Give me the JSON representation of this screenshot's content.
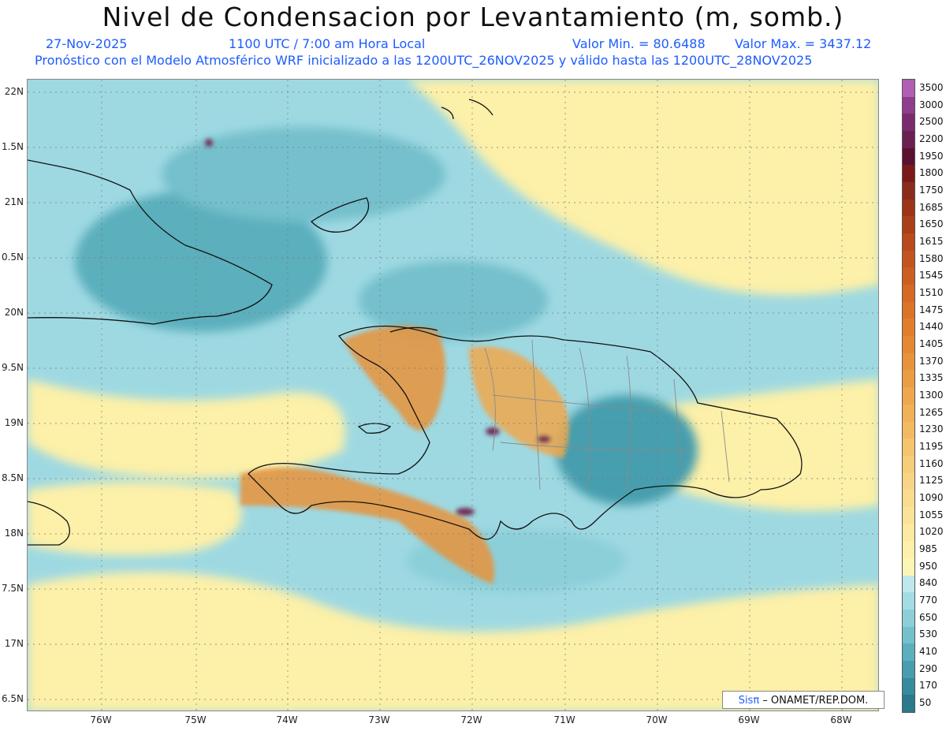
{
  "header": {
    "title": "Nivel de Condensacion por Levantamiento (m, somb.)",
    "date": "27-Nov-2025",
    "time": "1100 UTC / 7:00 am Hora Local",
    "min_label": "Valor Min. = 80.6488",
    "max_label": "Valor Max. = 3437.12",
    "forecast_note": "Pronóstico con el Modelo Atmosférico WRF inicializado a las 1200UTC_26NOV2025 y válido hasta las  1200UTC_28NOV2025"
  },
  "map": {
    "lat_labels": [
      "22N",
      "1.5N",
      "21N",
      "0.5N",
      "20N",
      "9.5N",
      "19N",
      "8.5N",
      "18N",
      "7.5N",
      "17N",
      "6.5N"
    ],
    "lon_labels": [
      "76W",
      "75W",
      "74W",
      "73W",
      "72W",
      "71W",
      "70W",
      "69W",
      "68W"
    ],
    "colors": {
      "low": "#2f7d8e",
      "mid": "#9ed9e2",
      "pale": "#fdf0a8",
      "high": "#d98b3a",
      "peak": "#6e2a52"
    }
  },
  "colorbar": {
    "levels": [
      "3500",
      "3000",
      "2500",
      "2200",
      "1950",
      "1800",
      "1750",
      "1685",
      "1650",
      "1615",
      "1580",
      "1545",
      "1510",
      "1475",
      "1440",
      "1405",
      "1370",
      "1335",
      "1300",
      "1265",
      "1230",
      "1195",
      "1160",
      "1125",
      "1090",
      "1055",
      "1020",
      "985",
      "950",
      "840",
      "770",
      "650",
      "530",
      "410",
      "290",
      "170",
      "50"
    ],
    "colors": [
      "#b05fb3",
      "#8f3d8c",
      "#7a2b6e",
      "#6a2050",
      "#5a1230",
      "#7a1a1a",
      "#8c2a1c",
      "#9c3518",
      "#aa4018",
      "#b84a1c",
      "#c4541f",
      "#cd5e22",
      "#d56a25",
      "#db7429",
      "#e07e2e",
      "#e48834",
      "#e8923b",
      "#eb9d44",
      "#eea74e",
      "#f0b159",
      "#f2ba63",
      "#f4c46e",
      "#f6cd79",
      "#f8d584",
      "#f9dc8e",
      "#fae398",
      "#fce9a2",
      "#fdf0ab",
      "#fdf5b5",
      "#bfe8ee",
      "#a4dce5",
      "#8ccfd9",
      "#74c0cc",
      "#5cafbd",
      "#479eae",
      "#358c9e",
      "#2a7a8c"
    ]
  },
  "credit": {
    "brand": "Sisπ",
    "text": " – ONAMET/REP.DOM."
  }
}
